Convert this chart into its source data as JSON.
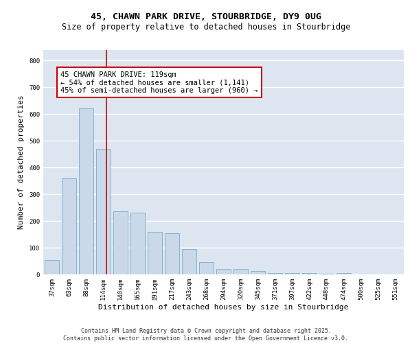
{
  "title_line1": "45, CHAWN PARK DRIVE, STOURBRIDGE, DY9 0UG",
  "title_line2": "Size of property relative to detached houses in Stourbridge",
  "xlabel": "Distribution of detached houses by size in Stourbridge",
  "ylabel": "Number of detached properties",
  "bar_color": "#c9d9ea",
  "bar_edgecolor": "#7aaac8",
  "background_color": "#dde6f0",
  "grid_color": "#ffffff",
  "categories": [
    "37sqm",
    "63sqm",
    "88sqm",
    "114sqm",
    "140sqm",
    "165sqm",
    "191sqm",
    "217sqm",
    "243sqm",
    "268sqm",
    "294sqm",
    "320sqm",
    "345sqm",
    "371sqm",
    "397sqm",
    "422sqm",
    "448sqm",
    "474sqm",
    "500sqm",
    "525sqm",
    "551sqm"
  ],
  "values": [
    55,
    360,
    620,
    470,
    235,
    230,
    160,
    155,
    95,
    45,
    20,
    20,
    12,
    5,
    5,
    5,
    2,
    5,
    1,
    1,
    1
  ],
  "ylim": [
    0,
    840
  ],
  "yticks": [
    0,
    100,
    200,
    300,
    400,
    500,
    600,
    700,
    800
  ],
  "red_line_x": 3.18,
  "annotation_title": "45 CHAWN PARK DRIVE: 119sqm",
  "annotation_line1": "← 54% of detached houses are smaller (1,141)",
  "annotation_line2": "45% of semi-detached houses are larger (960) →",
  "annotation_box_color": "white",
  "annotation_border_color": "#cc0000",
  "red_line_color": "#cc0000",
  "footer_line1": "Contains HM Land Registry data © Crown copyright and database right 2025.",
  "footer_line2": "Contains public sector information licensed under the Open Government Licence v3.0.",
  "title_fontsize": 9.5,
  "subtitle_fontsize": 8.5,
  "axis_label_fontsize": 8,
  "tick_fontsize": 6.5,
  "annotation_fontsize": 7.5,
  "footer_fontsize": 6
}
